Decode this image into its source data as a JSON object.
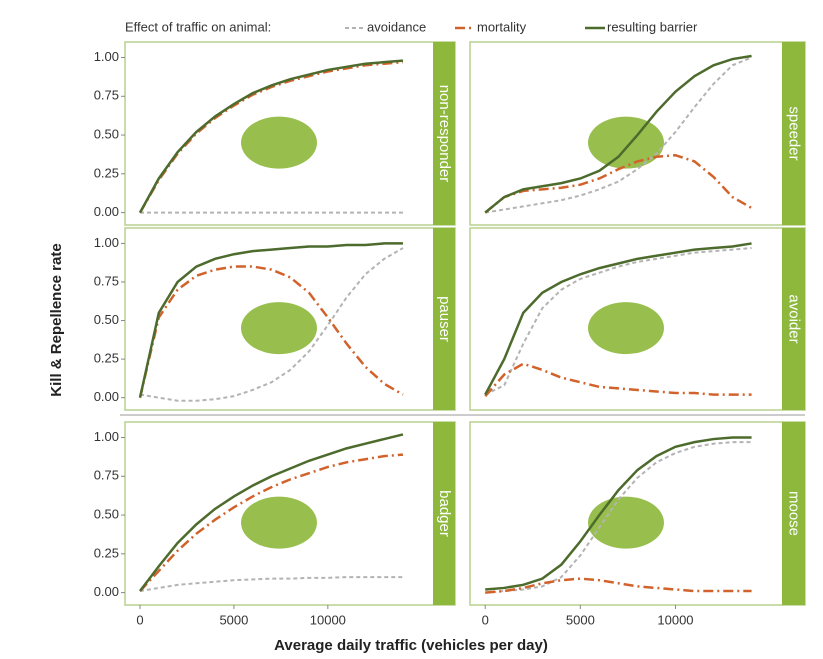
{
  "legend": {
    "title": "Effect of traffic on animal:",
    "series": [
      {
        "name": "avoidance",
        "color": "#b3b3b3",
        "style": "dashed"
      },
      {
        "name": "mortality",
        "color": "#d2622b",
        "style": "dashdot"
      },
      {
        "name": "resulting barrier",
        "color": "#4d6b2c",
        "style": "solid"
      }
    ]
  },
  "x_label": "Average daily traffic (vehicles per day)",
  "y_label": "Kill & Repellence rate",
  "chart_data": [
    {
      "type": "line",
      "title": "non-responder",
      "x": [
        0,
        1000,
        2000,
        3000,
        4000,
        5000,
        6000,
        7000,
        8000,
        9000,
        10000,
        11000,
        12000,
        13000,
        14000
      ],
      "series": [
        {
          "values": [
            0,
            0,
            0,
            0,
            0,
            0,
            0,
            0,
            0,
            0,
            0,
            0,
            0,
            0,
            0
          ]
        },
        {
          "values": [
            0,
            0.21,
            0.38,
            0.51,
            0.61,
            0.69,
            0.76,
            0.81,
            0.85,
            0.88,
            0.91,
            0.93,
            0.95,
            0.96,
            0.97
          ]
        },
        {
          "values": [
            0,
            0.22,
            0.39,
            0.52,
            0.62,
            0.7,
            0.77,
            0.82,
            0.86,
            0.89,
            0.92,
            0.94,
            0.96,
            0.97,
            0.98
          ]
        }
      ],
      "xlim": [
        -800,
        15600
      ],
      "ylim": [
        -0.08,
        1.1
      ],
      "yticks": [
        {
          "value": 0,
          "label": "0.00"
        },
        {
          "value": 0.25,
          "label": "0.25"
        },
        {
          "value": 0.5,
          "label": "0.50"
        },
        {
          "value": 0.75,
          "label": "0.75"
        },
        {
          "value": 1,
          "label": "1.00"
        }
      ]
    },
    {
      "type": "line",
      "title": "speeder",
      "x": [
        0,
        1000,
        2000,
        3000,
        4000,
        5000,
        6000,
        7000,
        8000,
        9000,
        10000,
        11000,
        12000,
        13000,
        14000
      ],
      "series": [
        {
          "values": [
            0,
            0.02,
            0.04,
            0.06,
            0.08,
            0.11,
            0.15,
            0.2,
            0.28,
            0.38,
            0.52,
            0.68,
            0.83,
            0.95,
            1.0
          ]
        },
        {
          "values": [
            0,
            0.1,
            0.14,
            0.15,
            0.16,
            0.18,
            0.22,
            0.28,
            0.33,
            0.36,
            0.37,
            0.33,
            0.23,
            0.1,
            0.03
          ]
        },
        {
          "values": [
            0,
            0.1,
            0.15,
            0.17,
            0.19,
            0.22,
            0.27,
            0.36,
            0.5,
            0.65,
            0.78,
            0.88,
            0.95,
            0.99,
            1.01
          ]
        }
      ],
      "xlim": [
        -800,
        15600
      ],
      "ylim": [
        -0.08,
        1.1
      ]
    },
    {
      "type": "line",
      "title": "pauser",
      "x": [
        0,
        1000,
        2000,
        3000,
        4000,
        5000,
        6000,
        7000,
        8000,
        9000,
        10000,
        11000,
        12000,
        13000,
        14000
      ],
      "series": [
        {
          "values": [
            0.02,
            0,
            -0.02,
            -0.02,
            -0.01,
            0.01,
            0.05,
            0.1,
            0.18,
            0.3,
            0.47,
            0.65,
            0.8,
            0.9,
            0.97
          ]
        },
        {
          "values": [
            0,
            0.52,
            0.7,
            0.79,
            0.83,
            0.85,
            0.85,
            0.83,
            0.78,
            0.68,
            0.52,
            0.35,
            0.2,
            0.09,
            0.02
          ]
        },
        {
          "values": [
            0,
            0.55,
            0.75,
            0.85,
            0.9,
            0.93,
            0.95,
            0.96,
            0.97,
            0.98,
            0.98,
            0.99,
            0.99,
            1.0,
            1.0
          ]
        }
      ],
      "xlim": [
        -800,
        15600
      ],
      "ylim": [
        -0.08,
        1.1
      ],
      "yticks": [
        {
          "value": 0,
          "label": "0.00"
        },
        {
          "value": 0.25,
          "label": "0.25"
        },
        {
          "value": 0.5,
          "label": "0.50"
        },
        {
          "value": 0.75,
          "label": "0.75"
        },
        {
          "value": 1,
          "label": "1.00"
        }
      ]
    },
    {
      "type": "line",
      "title": "avoider",
      "x": [
        0,
        1000,
        2000,
        3000,
        4000,
        5000,
        6000,
        7000,
        8000,
        9000,
        10000,
        11000,
        12000,
        13000,
        14000
      ],
      "series": [
        {
          "values": [
            0.02,
            0.08,
            0.35,
            0.58,
            0.7,
            0.77,
            0.81,
            0.85,
            0.88,
            0.9,
            0.92,
            0.94,
            0.95,
            0.96,
            0.97
          ]
        },
        {
          "values": [
            0.01,
            0.15,
            0.22,
            0.18,
            0.13,
            0.1,
            0.07,
            0.06,
            0.05,
            0.04,
            0.03,
            0.03,
            0.02,
            0.02,
            0.02
          ]
        },
        {
          "values": [
            0.02,
            0.25,
            0.55,
            0.68,
            0.75,
            0.8,
            0.84,
            0.87,
            0.9,
            0.92,
            0.94,
            0.96,
            0.97,
            0.98,
            1.0
          ]
        }
      ],
      "xlim": [
        -800,
        15600
      ],
      "ylim": [
        -0.08,
        1.1
      ]
    },
    {
      "type": "line",
      "title": "badger",
      "x": [
        0,
        1000,
        2000,
        3000,
        4000,
        5000,
        6000,
        7000,
        8000,
        9000,
        10000,
        11000,
        12000,
        13000,
        14000
      ],
      "series": [
        {
          "values": [
            0.01,
            0.03,
            0.05,
            0.06,
            0.07,
            0.08,
            0.085,
            0.09,
            0.09,
            0.095,
            0.095,
            0.1,
            0.1,
            0.1,
            0.1
          ]
        },
        {
          "values": [
            0.01,
            0.14,
            0.27,
            0.38,
            0.47,
            0.55,
            0.62,
            0.68,
            0.73,
            0.77,
            0.81,
            0.84,
            0.86,
            0.88,
            0.89
          ]
        },
        {
          "values": [
            0.01,
            0.17,
            0.32,
            0.44,
            0.54,
            0.62,
            0.69,
            0.75,
            0.8,
            0.85,
            0.89,
            0.93,
            0.96,
            0.99,
            1.02
          ]
        }
      ],
      "xlim": [
        -800,
        15600
      ],
      "ylim": [
        -0.08,
        1.1
      ],
      "xticks": [
        0,
        5000,
        10000
      ],
      "yticks": [
        {
          "value": 0,
          "label": "0.00"
        },
        {
          "value": 0.25,
          "label": "0.25"
        },
        {
          "value": 0.5,
          "label": "0.50"
        },
        {
          "value": 0.75,
          "label": "0.75"
        },
        {
          "value": 1,
          "label": "1.00"
        }
      ]
    },
    {
      "type": "line",
      "title": "moose",
      "x": [
        0,
        1000,
        2000,
        3000,
        4000,
        5000,
        6000,
        7000,
        8000,
        9000,
        10000,
        11000,
        12000,
        13000,
        14000
      ],
      "series": [
        {
          "values": [
            0,
            0.01,
            0.02,
            0.04,
            0.1,
            0.24,
            0.42,
            0.6,
            0.74,
            0.84,
            0.9,
            0.94,
            0.96,
            0.97,
            0.97
          ]
        },
        {
          "values": [
            0,
            0.01,
            0.03,
            0.06,
            0.08,
            0.09,
            0.08,
            0.06,
            0.04,
            0.03,
            0.02,
            0.01,
            0.01,
            0.01,
            0.01
          ]
        },
        {
          "values": [
            0.02,
            0.03,
            0.05,
            0.09,
            0.18,
            0.33,
            0.5,
            0.66,
            0.79,
            0.88,
            0.94,
            0.97,
            0.99,
            1.0,
            1.0
          ]
        }
      ],
      "xlim": [
        -800,
        15600
      ],
      "ylim": [
        -0.08,
        1.1
      ],
      "xticks": [
        0,
        5000,
        10000
      ]
    }
  ]
}
